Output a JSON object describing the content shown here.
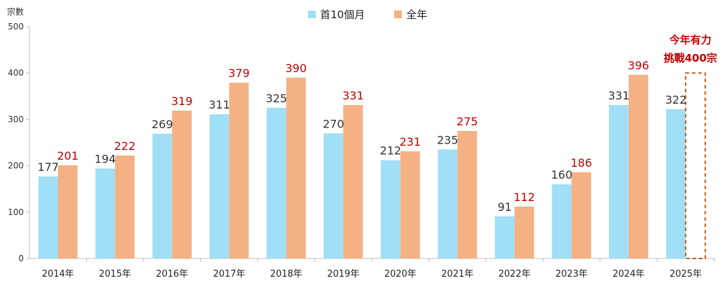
{
  "yaxis_unit": "宗數",
  "legend": [
    {
      "label": "首10個月",
      "color": "#a0dff5"
    },
    {
      "label": "全年",
      "color": "#f4b183"
    }
  ],
  "annotation": {
    "line1": "今年有力",
    "line2": "挑戰400宗",
    "color": "#c00000"
  },
  "chart_data": {
    "type": "bar",
    "categories": [
      "2014年",
      "2015年",
      "2016年",
      "2017年",
      "2018年",
      "2019年",
      "2020年",
      "2021年",
      "2022年",
      "2023年",
      "2024年",
      "2025年"
    ],
    "series": [
      {
        "name": "首10個月",
        "values": [
          177,
          194,
          269,
          311,
          325,
          270,
          212,
          235,
          91,
          160,
          331,
          322
        ],
        "label_color": "#333333"
      },
      {
        "name": "全年",
        "values": [
          201,
          222,
          319,
          379,
          390,
          331,
          231,
          275,
          112,
          186,
          396,
          null
        ],
        "label_color": "#c00000"
      }
    ],
    "target": {
      "category": "2025年",
      "value": 400,
      "style": "dashed"
    },
    "ylim": [
      0,
      500
    ],
    "yticks": [
      0,
      100,
      200,
      300,
      400,
      500
    ],
    "legend_position": "top-center"
  }
}
